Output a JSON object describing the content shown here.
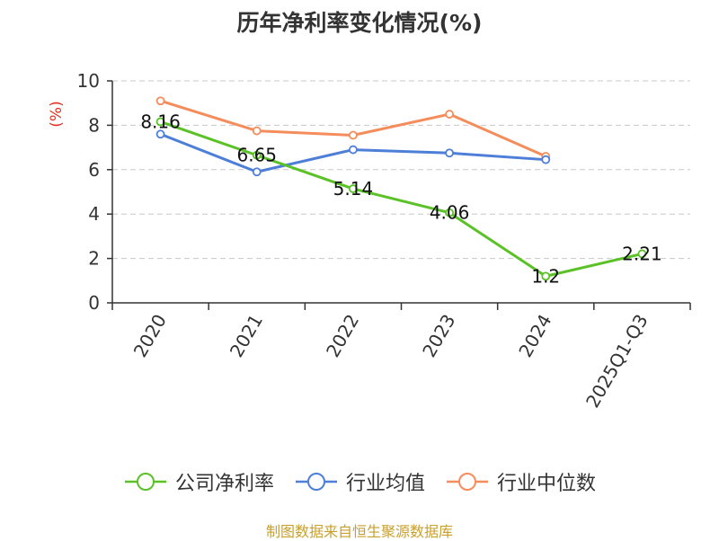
{
  "source": "制图数据来自恒生聚源数据库",
  "chart_data": {
    "type": "line",
    "title": "历年净利率变化情况(%)",
    "ylabel": "(%)",
    "ylim": [
      0,
      10
    ],
    "yticks": [
      0,
      2,
      4,
      6,
      8,
      10
    ],
    "categories": [
      "2020",
      "2021",
      "2022",
      "2023",
      "2024",
      "2025Q1-Q3"
    ],
    "grid": true,
    "legend_position": "bottom",
    "series": [
      {
        "name": "公司净利率",
        "color": "#5ac226",
        "values": [
          8.16,
          6.65,
          5.14,
          4.06,
          1.2,
          2.21
        ],
        "labels": [
          "8.16",
          "6.65",
          "5.14",
          "4.06",
          "1.2",
          "2.21"
        ]
      },
      {
        "name": "行业均值",
        "color": "#4e7fd8",
        "values": [
          7.6,
          5.9,
          6.9,
          6.75,
          6.45,
          null
        ]
      },
      {
        "name": "行业中位数",
        "color": "#f48d5b",
        "values": [
          9.1,
          7.75,
          7.55,
          8.5,
          6.6,
          null
        ]
      }
    ]
  }
}
